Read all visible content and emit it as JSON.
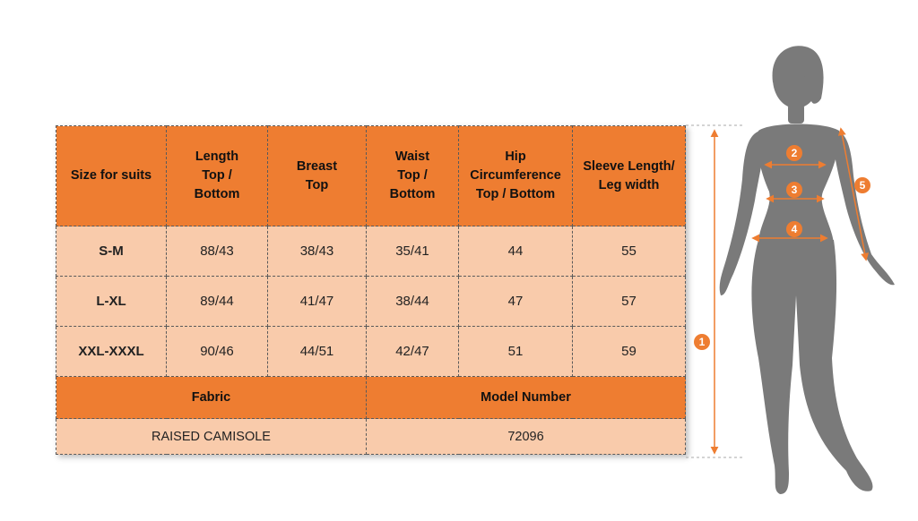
{
  "table": {
    "headers": [
      "Size for suits",
      "Length\nTop /\nBottom",
      "Breast\nTop",
      "Waist\nTop /\nBottom",
      "Hip\nCircumference\nTop / Bottom",
      "Sleeve Length/\nLeg width"
    ],
    "rows": [
      {
        "size": "S-M",
        "length": "88/43",
        "breast": "38/43",
        "waist": "35/41",
        "hip": "44",
        "sleeve": "55"
      },
      {
        "size": "L-XL",
        "length": "89/44",
        "breast": "41/47",
        "waist": "38/44",
        "hip": "47",
        "sleeve": "57"
      },
      {
        "size": "XXL-XXXL",
        "length": "90/46",
        "breast": "44/51",
        "waist": "42/47",
        "hip": "51",
        "sleeve": "59"
      }
    ],
    "fabric_label": "Fabric",
    "model_label": "Model Number",
    "fabric_value": "RAISED CAMISOLE",
    "model_value": "72096"
  },
  "figure": {
    "markers": [
      "1",
      "2",
      "3",
      "4",
      "5"
    ]
  },
  "colors": {
    "header": "#ee7d31",
    "cell": "#f9cbab",
    "silhouette": "#7a7a7a",
    "marker": "#ee7d31"
  }
}
